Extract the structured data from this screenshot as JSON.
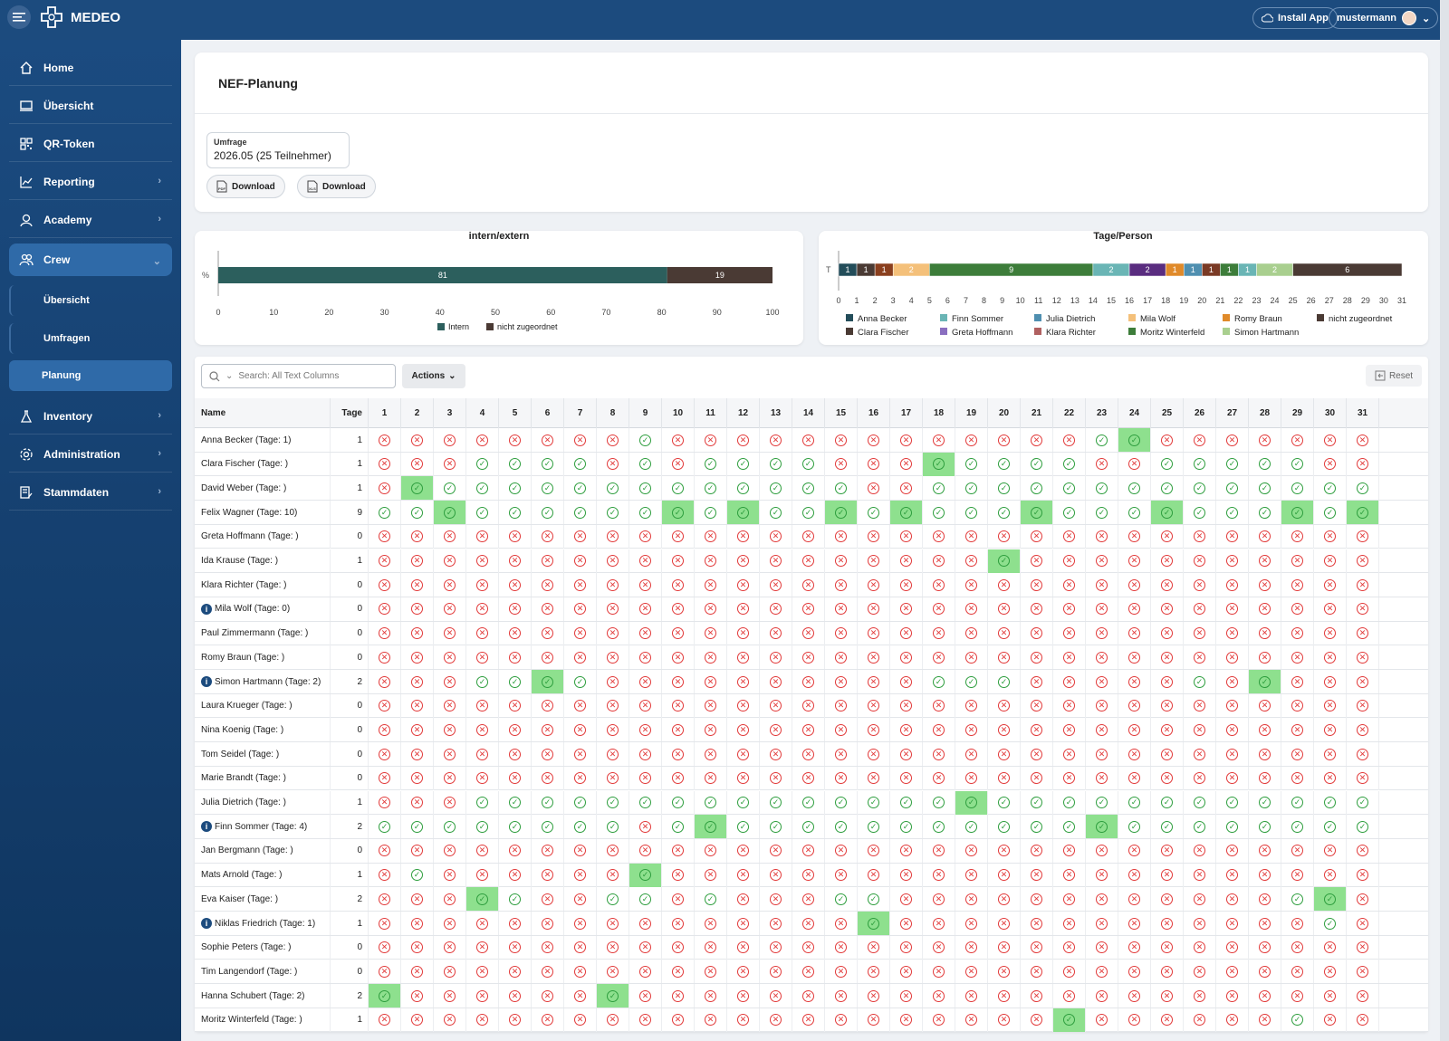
{
  "app": {
    "title": "MEDEO",
    "install_label": "Install App",
    "username": "mustermann"
  },
  "sidebar": {
    "items": [
      {
        "label": "Home",
        "icon": "home-icon"
      },
      {
        "label": "Übersicht",
        "icon": "laptop-icon"
      },
      {
        "label": "QR-Token",
        "icon": "qr-icon"
      },
      {
        "label": "Reporting",
        "icon": "chart-icon"
      },
      {
        "label": "Academy",
        "icon": "academy-icon"
      },
      {
        "label": "Crew",
        "icon": "crew-icon"
      },
      {
        "label": "Inventory",
        "icon": "flask-icon"
      },
      {
        "label": "Administration",
        "icon": "gear-icon"
      },
      {
        "label": "Stammdaten",
        "icon": "data-icon"
      }
    ],
    "crew_sub": [
      "Übersicht",
      "Umfragen",
      "Planung"
    ]
  },
  "page": {
    "title": "NEF-Planung",
    "umfrage_label": "Umfrage",
    "umfrage_value": "2026.05 (25 Teilnehmer)",
    "download_pdf": "Download",
    "download_xls": "Download"
  },
  "chart_data": [
    {
      "type": "bar",
      "title": "intern/extern",
      "orientation": "horizontal-stacked",
      "ylabel": "%",
      "xlim": [
        0,
        100
      ],
      "xticks": [
        0,
        10,
        20,
        30,
        40,
        50,
        60,
        70,
        80,
        90,
        100
      ],
      "series": [
        {
          "name": "Intern",
          "values": [
            81
          ],
          "color": "#2c5f5d"
        },
        {
          "name": "nicht zugeordnet",
          "values": [
            19
          ],
          "color": "#4a3a34"
        }
      ]
    },
    {
      "type": "bar",
      "title": "Tage/Person",
      "orientation": "horizontal-stacked",
      "ylabel": "T",
      "xlim": [
        0,
        31
      ],
      "xticks": [
        0,
        1,
        2,
        3,
        4,
        5,
        6,
        7,
        8,
        9,
        10,
        11,
        12,
        13,
        14,
        15,
        16,
        17,
        18,
        19,
        20,
        21,
        22,
        23,
        24,
        25,
        26,
        27,
        28,
        29,
        30,
        31
      ],
      "segments": [
        {
          "name": "Anna Becker",
          "value": 1,
          "color": "#234d5a"
        },
        {
          "name": "Clara Fischer",
          "value": 1,
          "color": "#4a3a34"
        },
        {
          "name": "Romy Braun",
          "value": 1,
          "color": "#8a3f1e"
        },
        {
          "name": "Mila Wolf",
          "value": 2,
          "color": "#f4c07a"
        },
        {
          "name": "Moritz Winterfeld",
          "value": 9,
          "color": "#3d7d3a"
        },
        {
          "name": "Finn Sommer",
          "value": 2,
          "color": "#6ab5b5"
        },
        {
          "name": "Greta Hoffmann",
          "value": 2,
          "color": "#5a2d80"
        },
        {
          "name": "Romy Braun",
          "value": 1,
          "color": "#e08a2a"
        },
        {
          "name": "Julia Dietrich",
          "value": 1,
          "color": "#4f8fb0"
        },
        {
          "name": "Klara Richter",
          "value": 1,
          "color": "#7a3a25"
        },
        {
          "name": "Moritz Winterfeld",
          "value": 1,
          "color": "#3d7d3a"
        },
        {
          "name": "Finn Sommer",
          "value": 1,
          "color": "#6ab5b5"
        },
        {
          "name": "Simon Hartmann",
          "value": 2,
          "color": "#a9cf8f"
        },
        {
          "name": "nicht zugeordnet",
          "value": 6,
          "color": "#4a3a34"
        }
      ],
      "legend": [
        {
          "name": "Anna Becker",
          "color": "#234d5a"
        },
        {
          "name": "Finn Sommer",
          "color": "#6ab5b5"
        },
        {
          "name": "Julia Dietrich",
          "color": "#4f8fb0"
        },
        {
          "name": "Mila Wolf",
          "color": "#f4c07a"
        },
        {
          "name": "Romy Braun",
          "color": "#e08a2a"
        },
        {
          "name": "nicht zugeordnet",
          "color": "#4a3a34"
        },
        {
          "name": "Clara Fischer",
          "color": "#4a3a34"
        },
        {
          "name": "Greta Hoffmann",
          "color": "#8a6fc0"
        },
        {
          "name": "Klara Richter",
          "color": "#b06060"
        },
        {
          "name": "Moritz Winterfeld",
          "color": "#3d7d3a"
        },
        {
          "name": "Simon Hartmann",
          "color": "#a9cf8f"
        }
      ]
    }
  ],
  "table": {
    "search_placeholder": "Search: All Text Columns",
    "actions_label": "Actions",
    "reset_label": "Reset",
    "columns": {
      "name": "Name",
      "tage": "Tage"
    },
    "days": 31,
    "rows": [
      {
        "name": "Anna Becker (Tage: 1)",
        "tage": 1,
        "info": false,
        "yes": [
          9,
          23,
          24
        ],
        "hl": [
          24
        ]
      },
      {
        "name": "Clara Fischer (Tage: )",
        "tage": 1,
        "info": false,
        "yes": [
          4,
          5,
          6,
          7,
          9,
          11,
          12,
          13,
          14,
          18,
          19,
          20,
          21,
          22,
          25,
          26,
          27,
          28,
          29
        ],
        "hl": [
          18
        ]
      },
      {
        "name": "David Weber (Tage: )",
        "tage": 1,
        "info": false,
        "yes": [
          2,
          3,
          4,
          5,
          6,
          7,
          8,
          9,
          10,
          11,
          12,
          13,
          14,
          15,
          18,
          19,
          20,
          21,
          22,
          23,
          24,
          25,
          26,
          27,
          28,
          29,
          30,
          31
        ],
        "hl": [
          2
        ]
      },
      {
        "name": "Felix Wagner (Tage: 10)",
        "tage": 9,
        "info": false,
        "yes": [
          1,
          2,
          3,
          4,
          5,
          6,
          7,
          8,
          9,
          10,
          11,
          12,
          13,
          14,
          15,
          16,
          17,
          18,
          19,
          20,
          21,
          22,
          23,
          24,
          25,
          26,
          27,
          28,
          29,
          30,
          31
        ],
        "hl": [
          3,
          10,
          12,
          15,
          17,
          21,
          25,
          29,
          31
        ]
      },
      {
        "name": "Greta Hoffmann (Tage: )",
        "tage": 0,
        "info": false,
        "yes": [],
        "hl": []
      },
      {
        "name": "Ida Krause (Tage: )",
        "tage": 1,
        "info": false,
        "yes": [
          20
        ],
        "hl": [
          20
        ]
      },
      {
        "name": "Klara Richter (Tage: )",
        "tage": 0,
        "info": false,
        "yes": [],
        "hl": []
      },
      {
        "name": "Mila Wolf (Tage: 0)",
        "tage": 0,
        "info": true,
        "yes": [],
        "hl": []
      },
      {
        "name": "Paul Zimmermann (Tage: )",
        "tage": 0,
        "info": false,
        "yes": [],
        "hl": []
      },
      {
        "name": "Romy Braun (Tage: )",
        "tage": 0,
        "info": false,
        "yes": [],
        "hl": []
      },
      {
        "name": "Simon Hartmann (Tage: 2)",
        "tage": 2,
        "info": true,
        "yes": [
          4,
          5,
          6,
          7,
          18,
          19,
          20,
          26,
          28
        ],
        "hl": [
          6,
          28
        ]
      },
      {
        "name": "Laura Krueger (Tage: )",
        "tage": 0,
        "info": false,
        "yes": [],
        "hl": []
      },
      {
        "name": "Nina Koenig (Tage: )",
        "tage": 0,
        "info": false,
        "yes": [],
        "hl": []
      },
      {
        "name": "Tom Seidel (Tage: )",
        "tage": 0,
        "info": false,
        "yes": [],
        "hl": []
      },
      {
        "name": "Marie Brandt (Tage: )",
        "tage": 0,
        "info": false,
        "yes": [],
        "hl": []
      },
      {
        "name": "Julia Dietrich (Tage: )",
        "tage": 1,
        "info": false,
        "yes": [
          4,
          5,
          6,
          7,
          8,
          9,
          10,
          11,
          12,
          13,
          14,
          15,
          16,
          17,
          18,
          19,
          20,
          21,
          22,
          23,
          24,
          25,
          26,
          27,
          28,
          29,
          30,
          31
        ],
        "hl": [
          19
        ]
      },
      {
        "name": "Finn Sommer (Tage: 4)",
        "tage": 2,
        "info": true,
        "yes": [
          1,
          2,
          3,
          4,
          5,
          6,
          7,
          8,
          10,
          11,
          12,
          13,
          14,
          15,
          16,
          17,
          18,
          19,
          20,
          21,
          22,
          23,
          24,
          25,
          26,
          27,
          28,
          29,
          30,
          31
        ],
        "hl": [
          11,
          23
        ]
      },
      {
        "name": "Jan Bergmann (Tage: )",
        "tage": 0,
        "info": false,
        "yes": [],
        "hl": []
      },
      {
        "name": "Mats Arnold (Tage: )",
        "tage": 1,
        "info": false,
        "yes": [
          2,
          9
        ],
        "hl": [
          9
        ]
      },
      {
        "name": "Eva Kaiser (Tage: )",
        "tage": 2,
        "info": false,
        "yes": [
          4,
          5,
          8,
          9,
          11,
          15,
          16,
          29,
          30
        ],
        "hl": [
          4,
          30
        ]
      },
      {
        "name": "Niklas Friedrich (Tage: 1)",
        "tage": 1,
        "info": true,
        "yes": [
          16,
          30
        ],
        "hl": [
          16
        ]
      },
      {
        "name": "Sophie Peters (Tage: )",
        "tage": 0,
        "info": false,
        "yes": [],
        "hl": []
      },
      {
        "name": "Tim Langendorf (Tage: )",
        "tage": 0,
        "info": false,
        "yes": [],
        "hl": []
      },
      {
        "name": "Hanna Schubert (Tage: 2)",
        "tage": 2,
        "info": false,
        "yes": [
          1,
          8
        ],
        "hl": [
          1,
          8
        ]
      },
      {
        "name": "Moritz Winterfeld (Tage: )",
        "tage": 1,
        "info": false,
        "yes": [
          22,
          29
        ],
        "hl": [
          22
        ]
      }
    ]
  }
}
